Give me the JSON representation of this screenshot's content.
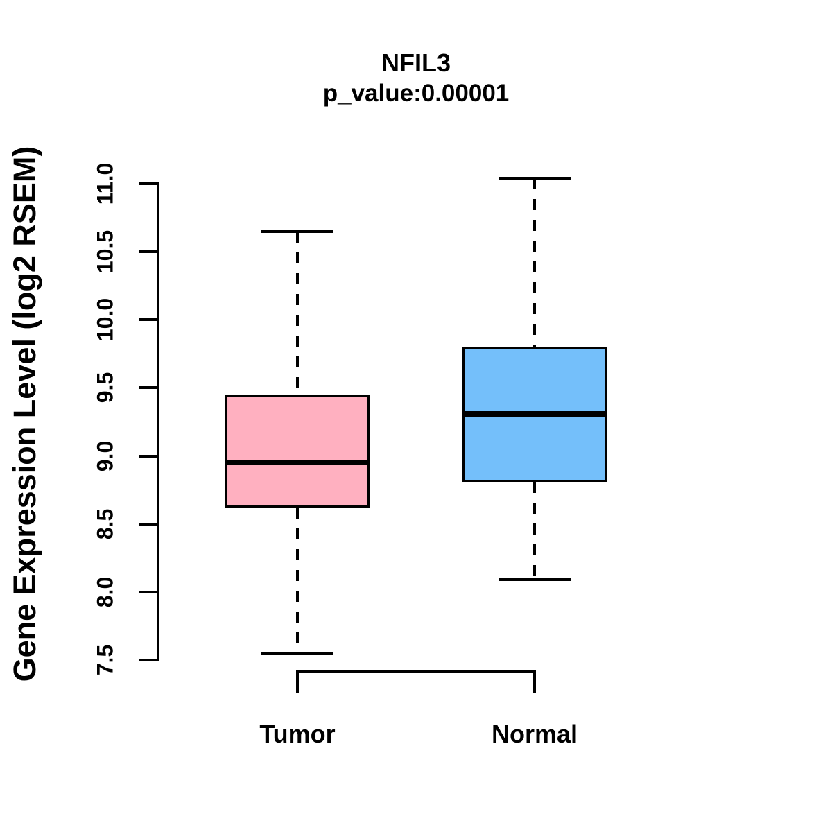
{
  "chart_data": {
    "type": "boxplot",
    "title": "NFIL3",
    "subtitle": "p_value:0.00001",
    "ylabel": "Gene Expression Level (log2 RSEM)",
    "ylim": [
      7.5,
      11.0
    ],
    "yticks": [
      7.5,
      8.0,
      8.5,
      9.0,
      9.5,
      10.0,
      10.5,
      11.0
    ],
    "ytick_labels": [
      "7.5",
      "8.0",
      "8.5",
      "9.0",
      "9.5",
      "10.0",
      "10.5",
      "11.0"
    ],
    "categories": [
      "Tumor",
      "Normal"
    ],
    "series": [
      {
        "name": "Tumor",
        "fill_color": "#FFB0C0",
        "whisker_low": 7.55,
        "q1": 8.62,
        "median": 8.95,
        "q3": 9.45,
        "whisker_high": 10.65
      },
      {
        "name": "Normal",
        "fill_color": "#74BFFA",
        "whisker_low": 8.09,
        "q1": 8.81,
        "median": 9.31,
        "q3": 9.8,
        "whisker_high": 11.04
      }
    ],
    "line_color": "#000000",
    "whisker_style": "dashed",
    "comparison_bracket": true,
    "grid": false,
    "legend": false
  }
}
